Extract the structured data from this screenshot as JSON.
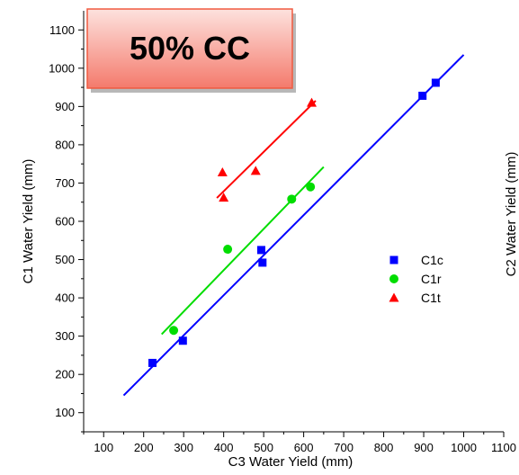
{
  "chart_data": {
    "type": "scatter",
    "callout": "50% CC",
    "xlabel": "C3 Water Yield (mm)",
    "ylabel": "C1 Water Yield (mm)",
    "ylabel_right": "C2 Water Yield (mm)",
    "xlim": [
      50,
      1100
    ],
    "ylim": [
      50,
      1150
    ],
    "xticks": [
      "100",
      "200",
      "300",
      "400",
      "500",
      "600",
      "700",
      "800",
      "900",
      "1000",
      "1100"
    ],
    "yticks": [
      "100",
      "200",
      "300",
      "400",
      "500",
      "600",
      "700",
      "800",
      "900",
      "1000",
      "1100"
    ],
    "legend_position": "right",
    "series": [
      {
        "name": "C1c",
        "color": "#0000ff",
        "marker": "square",
        "points": [
          [
            222,
            230
          ],
          [
            298,
            288
          ],
          [
            494,
            525
          ],
          [
            497,
            492
          ],
          [
            897,
            928
          ],
          [
            930,
            962
          ]
        ],
        "fit": [
          [
            150,
            145
          ],
          [
            1000,
            1035
          ]
        ]
      },
      {
        "name": "C1r",
        "color": "#00dd00",
        "marker": "circle",
        "points": [
          [
            275,
            315
          ],
          [
            410,
            527
          ],
          [
            570,
            658
          ],
          [
            617,
            690
          ]
        ],
        "fit": [
          [
            245,
            305
          ],
          [
            650,
            742
          ]
        ]
      },
      {
        "name": "C1t",
        "color": "#ff0000",
        "marker": "triangle",
        "points": [
          [
            397,
            728
          ],
          [
            400,
            662
          ],
          [
            480,
            732
          ],
          [
            620,
            910
          ]
        ],
        "fit": [
          [
            383,
            661
          ],
          [
            630,
            915
          ]
        ]
      }
    ]
  }
}
